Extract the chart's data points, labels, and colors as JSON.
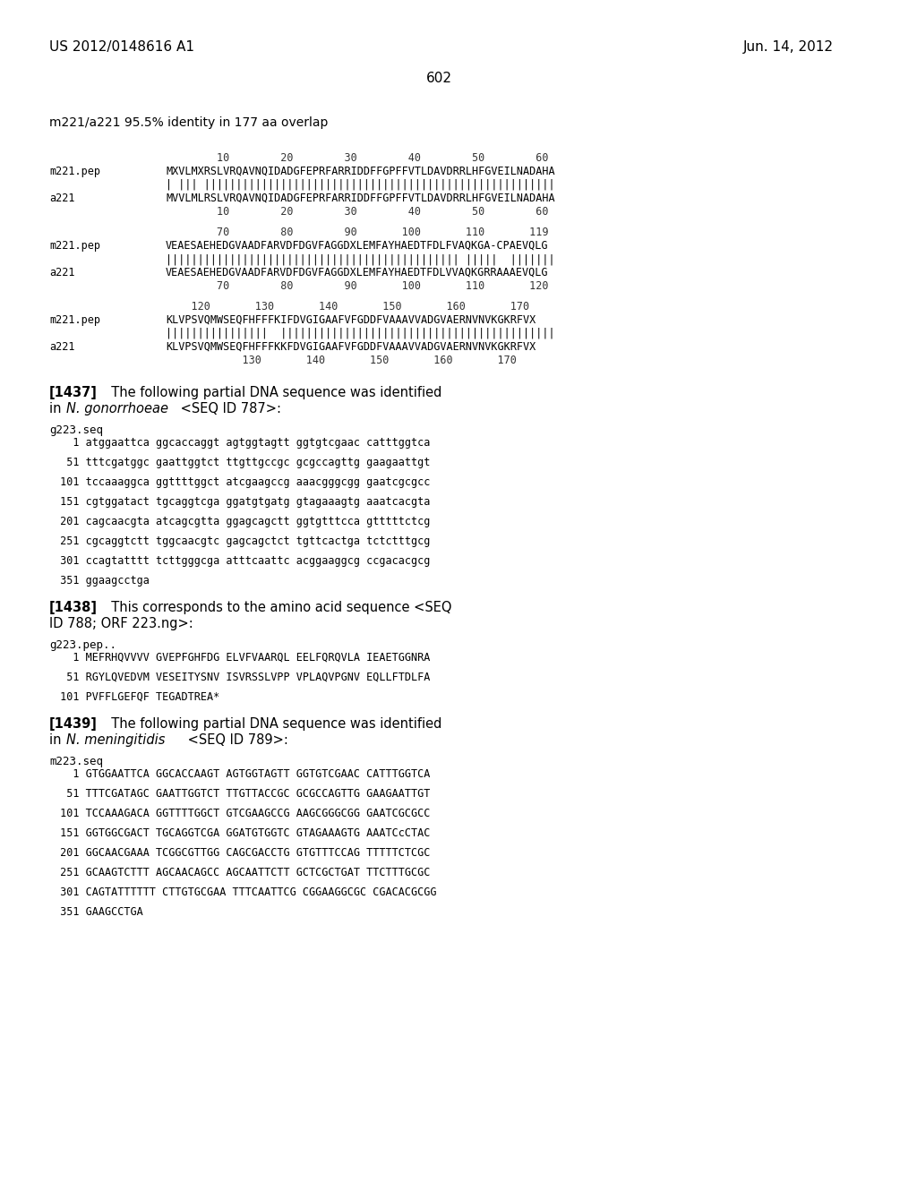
{
  "background_color": "#ffffff",
  "header_left": "US 2012/0148616 A1",
  "header_right": "Jun. 14, 2012",
  "page_number": "602",
  "subtitle": "m221/a221 95.5% identity in 177 aa overlap",
  "alignment_block": [
    {
      "type": "ruler",
      "text": "        10        20        30        40        50        60"
    },
    {
      "type": "seq",
      "label": "m221.pep",
      "text": "MXVLMXRSLVRQAVNQIDADGFEPRFARRIDDFFGPFFVTLDAVDRRLHFGVEILNADAHA"
    },
    {
      "type": "match",
      "text": "| ||| |||||||||||||||||||||||||||||||||||||||||||||||||||||||"
    },
    {
      "type": "seq",
      "label": "a221",
      "text": "MVVLMLRSLVRQAVNQIDADGFEPRFARRIDDFFGPFFVTLDAVDRRLHFGVEILNADAHA"
    },
    {
      "type": "ruler",
      "text": "        10        20        30        40        50        60"
    },
    {
      "type": "blank"
    },
    {
      "type": "ruler",
      "text": "        70        80        90       100       110       119"
    },
    {
      "type": "seq",
      "label": "m221.pep",
      "text": "VEAESAEHEDGVAADFARVDFDGVFAGGDXLEMFAYHAEDTFDLFVAQKGA-CPAEVQLG"
    },
    {
      "type": "match",
      "text": "|||||||||||||||||||||||||||||||||||||||||||||| |||||  |||||||"
    },
    {
      "type": "seq",
      "label": "a221",
      "text": "VEAESAEHEDGVAADFARVDFDGVFAGGDXLEMFAYHAEDTFDLVVAQKGRRAAAEVQLG"
    },
    {
      "type": "ruler",
      "text": "        70        80        90       100       110       120"
    },
    {
      "type": "blank"
    },
    {
      "type": "ruler",
      "text": "    120       130       140       150       160       170"
    },
    {
      "type": "seq",
      "label": "m221.pep",
      "text": "KLVPSVQMWSEQFHFFFKIFDVGIGAAFVFGDDFVAAAVVADGVAERNVNVKGKRFVX"
    },
    {
      "type": "match",
      "text": "||||||||||||||||  |||||||||||||||||||||||||||||||||||||||||||"
    },
    {
      "type": "seq",
      "label": "a221",
      "text": "KLVPSVQMWSEQFHFFFKKFDVGIGAAFVFGDDFVAAAVVADGVAERNVNVKGKRFVX"
    },
    {
      "type": "ruler",
      "text": "            130       140       150       160       170"
    }
  ],
  "paragraph_1437": "[1437]   The following partial DNA sequence was identified\nin ​N. gonorrhoeae​ <SEQ ID 787>:",
  "seq_label_1437": "g223.seq",
  "seq_lines_1437": [
    "   1 atggaattca ggcaccaggt agtggtagtt ggtgtcgaac catttggtca",
    "",
    "  51 tttcgatggc gaattggtct ttgttgccgc gcgccagttg gaagaattgt",
    "",
    " 101 tccaaaggca ggttttggct atcgaagccg aaacgggcgg gaatcgcgcc",
    "",
    " 151 cgtggatact tgcaggtcga ggatgtgatg gtagaaagtg aaatcacgta",
    "",
    " 201 cagcaacgta atcagcgtta ggagcagctt ggtgtttcca gtttttctcg",
    "",
    " 251 cgcaggtctt tggcaacgtc gagcagctct tgttcactga tctctttgcg",
    "",
    " 301 ccagtatttt tcttgggcga atttcaattc acggaaggcg ccgacacgcg",
    "",
    " 351 ggaagcctga"
  ],
  "paragraph_1438": "[1438]   This corresponds to the amino acid sequence <SEQ\nID 788; ORF 223.ng>:",
  "seq_label_1438": "g223.pep..",
  "seq_lines_1438": [
    "   1 MEFRHQVVVV GVEPFGHFDG ELVFVAARQL EELFQRQVLA IEAETGGNRA",
    "",
    "  51 RGYLQVEDVM VESEITYSNV_ISVRSSLVPP_VPLAQVPGNV EQLLFTDLFA",
    "",
    " 101 PVFFLGEFQF TEGADTREA*"
  ],
  "paragraph_1439": "[1439]   The following partial DNA sequence was identified\nin ​N. meningitidis​ <SEQ ID 789>:",
  "seq_label_1439": "m223.seq",
  "seq_lines_1439": [
    "   1 GTGGAATTCA GGCACCAAGT AGTGGTAGTT GGTGTCGAAC CATTTGGTCA",
    "",
    "  51 TTTCGATAGC GAATTGGTCT TTGTTACCGC GCGCCAGTTG GAAGAATTGT",
    "",
    " 101 TCCAAAGACA GGTTTTGGCT GTCGAAGCCG AAGCGGGCGG GAATCGCGCC",
    "",
    " 151 GGTGGCGACT TGCAGGTCGA GGATGTGGTC GTAGAAAGTG AAATCcCTAC",
    "",
    " 201 GGCAACGAAA TCGGCGTTGG CAGCGACCTG GTGTTTCCAG TTTTTCTCGC",
    "",
    " 251 GCAAGTCTTT AGCAACAGCC AGCAATTCTT GCTCGCTGAT TTCTTTGCGC",
    "",
    " 301 CAGTATTTTTT CTTGTGCGAA TTTCAATTCG CGGAAGGCGC CGACACGCGG",
    "",
    " 351 GAAGCCTGA"
  ]
}
